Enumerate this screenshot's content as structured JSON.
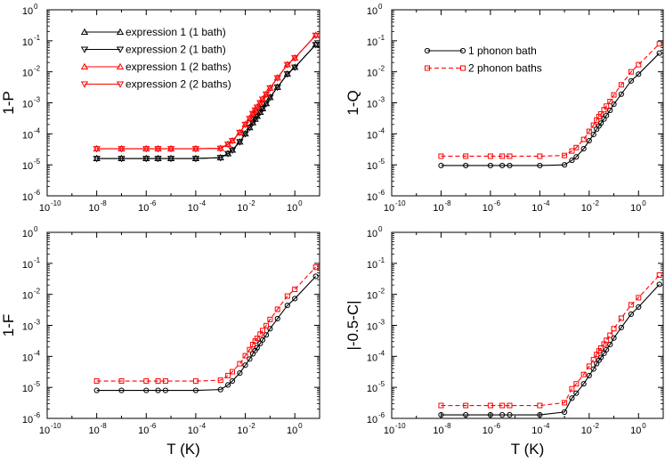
{
  "chart_data": [
    {
      "type": "line",
      "panel": "top-left",
      "ylabel": "1-P",
      "xlabel": "",
      "xscale": "log",
      "yscale": "log",
      "xlim": [
        1e-10,
        10
      ],
      "ylim": [
        1e-06,
        1
      ],
      "xticks": [
        "-10",
        "-8",
        "-6",
        "-4",
        "-2",
        "0"
      ],
      "yticks": [
        "-6",
        "-5",
        "-4",
        "-3",
        "-2",
        "-1",
        "0"
      ],
      "legend_position": "top-left",
      "series": [
        {
          "name": "expression 1 (1 bath)",
          "color": "#000000",
          "marker": "triangle-up",
          "dash": "solid",
          "x": [
            1e-08,
            1e-07,
            1e-06,
            3e-06,
            1e-05,
            0.0001,
            0.001,
            0.002,
            0.003,
            0.006,
            0.01,
            0.015,
            0.02,
            0.025,
            0.03,
            0.04,
            0.05,
            0.07,
            0.1,
            0.2,
            0.5,
            1,
            7
          ],
          "y": [
            1.6e-05,
            1.6e-05,
            1.6e-05,
            1.6e-05,
            1.6e-05,
            1.6e-05,
            1.7e-05,
            2.3e-05,
            3e-05,
            5.5e-05,
            0.0001,
            0.00016,
            0.00023,
            0.0003,
            0.00037,
            0.0005,
            0.00065,
            0.00095,
            0.0015,
            0.0032,
            0.0085,
            0.014,
            0.075
          ]
        },
        {
          "name": "expression 2 (1 bath)",
          "color": "#000000",
          "marker": "triangle-down",
          "dash": "solid",
          "x": [
            1e-08,
            1e-07,
            1e-06,
            3e-06,
            1e-05,
            0.0001,
            0.001,
            0.002,
            0.003,
            0.006,
            0.01,
            0.015,
            0.02,
            0.025,
            0.03,
            0.04,
            0.05,
            0.07,
            0.1,
            0.2,
            0.5,
            1,
            7
          ],
          "y": [
            1.6e-05,
            1.6e-05,
            1.6e-05,
            1.6e-05,
            1.6e-05,
            1.6e-05,
            1.7e-05,
            2.3e-05,
            3e-05,
            5.5e-05,
            0.0001,
            0.00016,
            0.00023,
            0.0003,
            0.00037,
            0.0005,
            0.00065,
            0.00095,
            0.0015,
            0.0032,
            0.0085,
            0.014,
            0.075
          ]
        },
        {
          "name": "expression 1 (2 baths)",
          "color": "#ff0000",
          "marker": "triangle-up",
          "dash": "solid",
          "x": [
            1e-08,
            1e-07,
            1e-06,
            3e-06,
            1e-05,
            0.0001,
            0.001,
            0.002,
            0.003,
            0.006,
            0.01,
            0.015,
            0.02,
            0.025,
            0.03,
            0.04,
            0.05,
            0.07,
            0.1,
            0.2,
            0.5,
            1,
            7
          ],
          "y": [
            3.3e-05,
            3.3e-05,
            3.3e-05,
            3.3e-05,
            3.3e-05,
            3.3e-05,
            3.4e-05,
            4.6e-05,
            6e-05,
            0.00011,
            0.0002,
            0.00031,
            0.00045,
            0.00058,
            0.00072,
            0.001,
            0.0013,
            0.0019,
            0.003,
            0.0064,
            0.017,
            0.028,
            0.15
          ]
        },
        {
          "name": "expression 2 (2 baths)",
          "color": "#ff0000",
          "marker": "triangle-down",
          "dash": "solid",
          "x": [
            1e-08,
            1e-07,
            1e-06,
            3e-06,
            1e-05,
            0.0001,
            0.001,
            0.002,
            0.003,
            0.006,
            0.01,
            0.015,
            0.02,
            0.025,
            0.03,
            0.04,
            0.05,
            0.07,
            0.1,
            0.2,
            0.5,
            1,
            7
          ],
          "y": [
            3.3e-05,
            3.3e-05,
            3.3e-05,
            3.3e-05,
            3.3e-05,
            3.3e-05,
            3.4e-05,
            4.6e-05,
            6e-05,
            0.00011,
            0.0002,
            0.00031,
            0.00045,
            0.00058,
            0.00072,
            0.001,
            0.0013,
            0.0019,
            0.003,
            0.0064,
            0.017,
            0.028,
            0.15
          ]
        }
      ]
    },
    {
      "type": "line",
      "panel": "top-right",
      "ylabel": "1-Q",
      "xlabel": "",
      "xscale": "log",
      "yscale": "log",
      "xlim": [
        1e-10,
        10
      ],
      "ylim": [
        1e-06,
        1
      ],
      "xticks": [
        "-10",
        "-8",
        "-6",
        "-4",
        "-2",
        "0"
      ],
      "yticks": [
        "-6",
        "-5",
        "-4",
        "-3",
        "-2",
        "-1",
        "0"
      ],
      "legend_position": "top-center",
      "series": [
        {
          "name": "1 phonon bath",
          "color": "#000000",
          "marker": "circle",
          "dash": "solid",
          "x": [
            1e-08,
            1e-07,
            1e-06,
            3e-06,
            6e-06,
            0.0001,
            0.001,
            0.002,
            0.003,
            0.006,
            0.01,
            0.015,
            0.02,
            0.025,
            0.03,
            0.04,
            0.05,
            0.07,
            0.1,
            0.2,
            0.5,
            1,
            7
          ],
          "y": [
            9.5e-06,
            9.5e-06,
            9.5e-06,
            9.5e-06,
            9.5e-06,
            9.5e-06,
            1e-05,
            1.4e-05,
            1.8e-05,
            3.3e-05,
            6e-05,
            9.5e-05,
            0.00014,
            0.00018,
            0.00022,
            0.0003,
            0.00039,
            0.00057,
            0.0009,
            0.0019,
            0.0051,
            0.0084,
            0.04
          ]
        },
        {
          "name": "2 phonon baths",
          "color": "#ff0000",
          "marker": "square",
          "dash": "dashed",
          "x": [
            1e-08,
            1e-07,
            1e-06,
            3e-06,
            6e-06,
            0.0001,
            0.001,
            0.002,
            0.003,
            0.006,
            0.01,
            0.015,
            0.02,
            0.025,
            0.03,
            0.04,
            0.05,
            0.07,
            0.1,
            0.2,
            0.5,
            1,
            7
          ],
          "y": [
            1.9e-05,
            1.9e-05,
            1.9e-05,
            1.9e-05,
            1.9e-05,
            1.9e-05,
            2e-05,
            2.8e-05,
            3.6e-05,
            6.6e-05,
            0.00012,
            0.00019,
            0.00028,
            0.00036,
            0.00044,
            0.0006,
            0.00078,
            0.0011,
            0.0018,
            0.0038,
            0.01,
            0.017,
            0.08
          ]
        }
      ]
    },
    {
      "type": "line",
      "panel": "bottom-left",
      "ylabel": "1-F",
      "xlabel": "T (K)",
      "xscale": "log",
      "yscale": "log",
      "xlim": [
        1e-10,
        10
      ],
      "ylim": [
        1e-06,
        1
      ],
      "xticks": [
        "-10",
        "-8",
        "-6",
        "-4",
        "-2",
        "0"
      ],
      "yticks": [
        "-6",
        "-5",
        "-4",
        "-3",
        "-2",
        "-1",
        "0"
      ],
      "series": [
        {
          "name": "1 phonon bath",
          "color": "#000000",
          "marker": "circle",
          "dash": "solid",
          "x": [
            1e-08,
            1e-07,
            1e-06,
            3e-06,
            6e-06,
            0.0001,
            0.001,
            0.002,
            0.003,
            0.006,
            0.01,
            0.015,
            0.02,
            0.025,
            0.03,
            0.04,
            0.05,
            0.07,
            0.1,
            0.2,
            0.5,
            1,
            7
          ],
          "y": [
            8e-06,
            8e-06,
            8e-06,
            8e-06,
            8e-06,
            8e-06,
            8.5e-06,
            1.2e-05,
            1.6e-05,
            2.9e-05,
            5.2e-05,
            8.2e-05,
            0.00012,
            0.000155,
            0.00019,
            0.00026,
            0.00034,
            0.00049,
            0.00078,
            0.00165,
            0.0044,
            0.0073,
            0.038
          ]
        },
        {
          "name": "2 phonon baths",
          "color": "#ff0000",
          "marker": "square",
          "dash": "dashed",
          "x": [
            1e-08,
            1e-07,
            1e-06,
            3e-06,
            6e-06,
            0.0001,
            0.001,
            0.002,
            0.003,
            0.006,
            0.01,
            0.015,
            0.02,
            0.025,
            0.03,
            0.04,
            0.05,
            0.07,
            0.1,
            0.2,
            0.5,
            1,
            7
          ],
          "y": [
            1.6e-05,
            1.6e-05,
            1.6e-05,
            1.6e-05,
            1.6e-05,
            1.6e-05,
            1.7e-05,
            2.4e-05,
            3.2e-05,
            5.8e-05,
            0.000105,
            0.000165,
            0.00024,
            0.00031,
            0.00038,
            0.00052,
            0.00068,
            0.00098,
            0.00155,
            0.0033,
            0.0088,
            0.0145,
            0.075
          ]
        }
      ]
    },
    {
      "type": "line",
      "panel": "bottom-right",
      "ylabel": "|-0.5-C|",
      "xlabel": "T (K)",
      "xscale": "log",
      "yscale": "log",
      "xlim": [
        1e-10,
        10
      ],
      "ylim": [
        1e-06,
        1
      ],
      "xticks": [
        "-10",
        "-8",
        "-6",
        "-4",
        "-2",
        "0"
      ],
      "yticks": [
        "-6",
        "-5",
        "-4",
        "-3",
        "-2",
        "-1",
        "0"
      ],
      "series": [
        {
          "name": "1 phonon bath",
          "color": "#000000",
          "marker": "circle",
          "dash": "solid",
          "x": [
            1e-08,
            1e-07,
            1e-06,
            3e-06,
            6e-06,
            0.0001,
            0.001,
            0.002,
            0.003,
            0.006,
            0.01,
            0.015,
            0.02,
            0.025,
            0.03,
            0.04,
            0.05,
            0.07,
            0.1,
            0.2,
            0.5,
            1,
            7
          ],
          "y": [
            1.3e-06,
            1.3e-06,
            1.3e-06,
            1.3e-06,
            1.3e-06,
            1.3e-06,
            1.6e-06,
            4.5e-06,
            6.5e-06,
            1.3e-05,
            2.4e-05,
            3.9e-05,
            5.8e-05,
            7.5e-05,
            9.2e-05,
            0.000125,
            0.000165,
            0.00024,
            0.00039,
            0.00085,
            0.0023,
            0.0039,
            0.021
          ]
        },
        {
          "name": "2 phonon baths",
          "color": "#ff0000",
          "marker": "square",
          "dash": "dashed",
          "x": [
            1e-08,
            1e-07,
            1e-06,
            3e-06,
            6e-06,
            0.0001,
            0.001,
            0.002,
            0.003,
            0.006,
            0.01,
            0.015,
            0.02,
            0.025,
            0.03,
            0.04,
            0.05,
            0.07,
            0.1,
            0.2,
            0.5,
            1,
            7
          ],
          "y": [
            2.6e-06,
            2.6e-06,
            2.6e-06,
            2.6e-06,
            2.6e-06,
            2.6e-06,
            3.2e-06,
            9e-06,
            1.3e-05,
            2.6e-05,
            4.8e-05,
            7.8e-05,
            0.000115,
            0.00015,
            0.000185,
            0.00025,
            0.00033,
            0.00048,
            0.00078,
            0.0017,
            0.0046,
            0.0078,
            0.042
          ]
        }
      ]
    }
  ]
}
